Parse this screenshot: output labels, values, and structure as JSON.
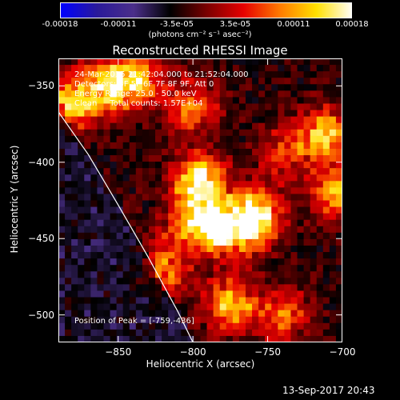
{
  "colorbar": {
    "ticks": [
      "-0.00018",
      "-0.00011",
      "-3.5e-05",
      "3.5e-05",
      "0.00011",
      "0.00018"
    ],
    "units": "(photons cm⁻² s⁻¹ asec⁻²)",
    "range": [
      -0.00018,
      0.00018
    ],
    "colormap": [
      "#0000ff",
      "#2a1a9a",
      "#4b2f8a",
      "#000000",
      "#7a0000",
      "#e60000",
      "#ff7a00",
      "#ffe000",
      "#ffffff"
    ]
  },
  "info": {
    "line1": "24-Mar-2015 21:42:04.000 to 21:52:04.000",
    "line2": "Detectors: 3F 5F 6F 7F 8F 9F, Att 0",
    "line3": "Energy Range: 25.0 - 50.0 keV",
    "line4": "Clean     Total counts: 1.57E+04"
  },
  "peak_label": "Position of Peak = [-759,-436]",
  "footer": "13-Sep-2017 20:43",
  "chart_data": {
    "type": "heatmap",
    "title": "Reconstructed RHESSI Image",
    "xlabel": "Heliocentric X (arcsec)",
    "ylabel": "Heliocentric Y (arcsec)",
    "xlim": [
      -890,
      -700
    ],
    "ylim": [
      -518,
      -332
    ],
    "xticks": [
      -850,
      -800,
      -750,
      -700
    ],
    "yticks": [
      -350,
      -400,
      -450,
      -500
    ],
    "peak": [
      -759,
      -436
    ],
    "limb_curve": [
      [
        -890,
        -367
      ],
      [
        -870,
        -395
      ],
      [
        -850,
        -428
      ],
      [
        -830,
        -462
      ],
      [
        -810,
        -498
      ],
      [
        -800,
        -518
      ]
    ],
    "emission_blobs": [
      {
        "x": -758,
        "y": -436,
        "amp": 1.0
      },
      {
        "x": -795,
        "y": -413,
        "amp": 0.9
      },
      {
        "x": -778,
        "y": -445,
        "amp": 0.78
      },
      {
        "x": -800,
        "y": -440,
        "amp": 0.7
      },
      {
        "x": -775,
        "y": -493,
        "amp": 0.72
      },
      {
        "x": -820,
        "y": -470,
        "amp": 0.55
      },
      {
        "x": -855,
        "y": -350,
        "amp": 0.75
      },
      {
        "x": -880,
        "y": -360,
        "amp": 0.7
      },
      {
        "x": -835,
        "y": -345,
        "amp": 0.55
      },
      {
        "x": -712,
        "y": -382,
        "amp": 0.72
      },
      {
        "x": -705,
        "y": -420,
        "amp": 0.6
      },
      {
        "x": -740,
        "y": -500,
        "amp": 0.5
      },
      {
        "x": -800,
        "y": -365,
        "amp": 0.55
      },
      {
        "x": -740,
        "y": -395,
        "amp": 0.4
      }
    ]
  }
}
